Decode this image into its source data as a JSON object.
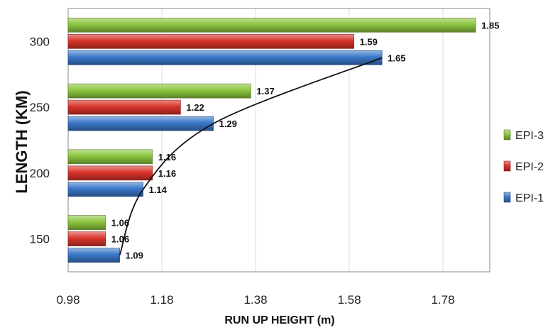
{
  "chart_data": {
    "type": "bar",
    "orientation": "horizontal",
    "categories": [
      "150",
      "200",
      "250",
      "300"
    ],
    "series": [
      {
        "name": "EPI-3",
        "values": [
          1.06,
          1.16,
          1.37,
          1.85
        ],
        "color": "#8dc63f"
      },
      {
        "name": "EPI-2",
        "values": [
          1.06,
          1.16,
          1.22,
          1.59
        ],
        "color": "#d9342b"
      },
      {
        "name": "EPI-1",
        "values": [
          1.09,
          1.14,
          1.29,
          1.65
        ],
        "color": "#3a78c9"
      }
    ],
    "trend_line": {
      "color": "#111111"
    },
    "xlabel": "RUN UP HEIGHT (m)",
    "ylabel": "LENGTH (KM)",
    "xlim": [
      0.98,
      1.88
    ],
    "xticks": [
      "0.98",
      "1.18",
      "1.38",
      "1.58",
      "1.78"
    ],
    "grid": "vertical",
    "legend": "right",
    "legend_order": [
      "EPI-3",
      "EPI-2",
      "EPI-1"
    ]
  }
}
